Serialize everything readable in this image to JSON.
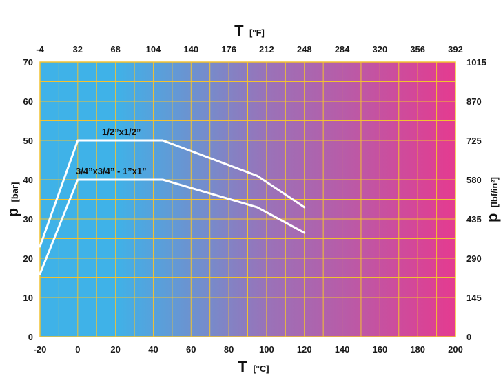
{
  "chart_data": {
    "type": "line",
    "x_bottom": {
      "label": "T",
      "unit": "[°C]",
      "ticks": [
        "-20",
        "0",
        "20",
        "40",
        "60",
        "80",
        "100",
        "120",
        "140",
        "160",
        "180",
        "200"
      ],
      "range": [
        -20,
        200
      ]
    },
    "x_top": {
      "label": "T",
      "unit": "[°F]",
      "ticks": [
        "-4",
        "32",
        "68",
        "104",
        "140",
        "176",
        "212",
        "248",
        "284",
        "320",
        "356",
        "392"
      ]
    },
    "y_left": {
      "label": "p",
      "unit": "[bar]",
      "ticks": [
        "0",
        "10",
        "20",
        "30",
        "40",
        "50",
        "60",
        "70"
      ],
      "range": [
        0,
        70
      ]
    },
    "y_right": {
      "label": "p",
      "unit": "[lbf/in²]",
      "ticks": [
        "0",
        "145",
        "290",
        "435",
        "580",
        "725",
        "870",
        "1015"
      ]
    },
    "grid": true,
    "background_gradient": [
      "#3fb2e8",
      "#e43b90"
    ],
    "grid_color": "#f2c230",
    "line_color": "#ffffff",
    "series": [
      {
        "name": "1/2”x1/2”",
        "x": [
          -20,
          0,
          45,
          95,
          120
        ],
        "y": [
          23,
          50,
          50,
          41,
          33
        ]
      },
      {
        "name": "3/4”x3/4” - 1”x1”",
        "x": [
          -20,
          0,
          45,
          95,
          120
        ],
        "y": [
          16,
          40,
          40,
          33,
          26.5
        ]
      }
    ]
  }
}
